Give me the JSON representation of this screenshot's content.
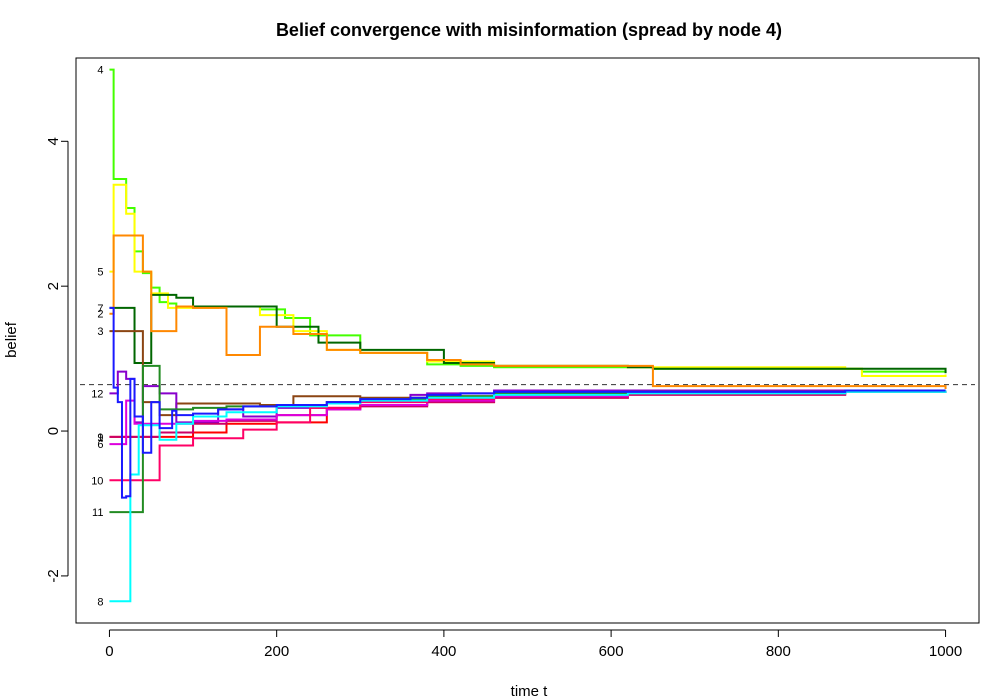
{
  "chart_data": {
    "type": "line",
    "title": "Belief convergence with misinformation (spread by node 4)",
    "xlabel": "time t",
    "ylabel": "belief",
    "xlim": [
      -40,
      1040
    ],
    "ylim": [
      -2.65,
      5.15
    ],
    "x_ticks": [
      0,
      200,
      400,
      600,
      800,
      1000
    ],
    "y_ticks": [
      -2,
      0,
      2,
      4
    ],
    "reference_line": {
      "y": 0.64,
      "style": "dashed"
    },
    "series": [
      {
        "name": "4",
        "color": "#44ff00",
        "x": [
          0,
          5,
          20,
          30,
          40,
          50,
          60,
          70,
          80,
          100,
          130,
          180,
          210,
          240,
          300,
          380,
          420,
          460,
          620,
          650,
          880,
          900,
          1000
        ],
        "y": [
          4.99,
          3.48,
          3.08,
          2.48,
          2.18,
          1.98,
          1.78,
          1.76,
          1.72,
          1.72,
          1.72,
          1.68,
          1.56,
          1.32,
          1.08,
          0.92,
          0.9,
          0.88,
          0.88,
          0.86,
          0.86,
          0.82,
          0.8
        ]
      },
      {
        "name": "5",
        "color": "#ffff00",
        "x": [
          0,
          5,
          20,
          30,
          50,
          70,
          90,
          130,
          180,
          220,
          260,
          300,
          380,
          460,
          620,
          880,
          900,
          1000
        ],
        "y": [
          2.2,
          3.4,
          3.0,
          2.2,
          1.9,
          1.7,
          1.7,
          1.72,
          1.6,
          1.38,
          1.12,
          1.08,
          0.96,
          0.9,
          0.88,
          0.86,
          0.76,
          0.78
        ]
      },
      {
        "name": "7",
        "color": "#006600",
        "x": [
          0,
          5,
          30,
          50,
          80,
          100,
          180,
          200,
          250,
          300,
          400,
          460,
          620,
          650,
          880,
          1000
        ],
        "y": [
          1.7,
          1.7,
          0.94,
          1.88,
          1.84,
          1.72,
          1.72,
          1.44,
          1.22,
          1.12,
          0.94,
          0.9,
          0.88,
          0.86,
          0.86,
          0.8
        ]
      },
      {
        "name": "2",
        "color": "#ff8800",
        "x": [
          0,
          5,
          40,
          50,
          80,
          100,
          140,
          180,
          220,
          260,
          300,
          380,
          420,
          460,
          620,
          650,
          880,
          1000
        ],
        "y": [
          1.62,
          2.7,
          2.2,
          1.38,
          1.72,
          1.7,
          1.05,
          1.44,
          1.34,
          1.12,
          1.08,
          0.98,
          0.92,
          0.9,
          0.9,
          0.62,
          0.62,
          0.58
        ]
      },
      {
        "name": "3",
        "color": "#8b4513",
        "x": [
          0,
          20,
          40,
          60,
          80,
          100,
          140,
          180,
          220,
          300,
          380,
          460,
          620,
          880,
          1000
        ],
        "y": [
          1.38,
          1.38,
          0.4,
          0.22,
          0.38,
          0.38,
          0.38,
          0.36,
          0.48,
          0.46,
          0.48,
          0.52,
          0.52,
          0.54,
          0.54
        ]
      },
      {
        "name": "12",
        "color": "#8800cc",
        "x": [
          0,
          10,
          20,
          30,
          40,
          60,
          80,
          130,
          160,
          200,
          260,
          300,
          360,
          380,
          420,
          460,
          620,
          880,
          1000
        ],
        "y": [
          0.52,
          0.82,
          0.72,
          0.12,
          0.62,
          0.52,
          0.12,
          0.3,
          0.2,
          0.32,
          0.4,
          0.42,
          0.5,
          0.52,
          0.52,
          0.56,
          0.56,
          0.56,
          0.56
        ]
      },
      {
        "name": "9",
        "color": "#ff0000",
        "x": [
          0,
          20,
          40,
          60,
          100,
          140,
          200,
          260,
          300,
          380,
          460,
          620,
          880,
          1000
        ],
        "y": [
          -0.08,
          -0.08,
          -0.08,
          -0.08,
          -0.02,
          0.1,
          0.12,
          0.32,
          0.36,
          0.4,
          0.46,
          0.52,
          0.54,
          0.56
        ]
      },
      {
        "name": "1",
        "color": "#cc0066",
        "x": [
          0,
          20,
          40,
          60,
          100,
          140,
          200,
          260,
          300,
          380,
          460,
          620,
          880,
          1000
        ],
        "y": [
          -0.08,
          -0.08,
          -0.08,
          -0.02,
          0.1,
          0.14,
          0.22,
          0.3,
          0.34,
          0.4,
          0.46,
          0.5,
          0.54,
          0.56
        ]
      },
      {
        "name": "6",
        "color": "#dd00dd",
        "x": [
          0,
          10,
          20,
          30,
          60,
          80,
          100,
          140,
          200,
          260,
          300,
          380,
          460,
          620,
          880,
          1000
        ],
        "y": [
          -0.18,
          -0.18,
          0.42,
          0.1,
          0.1,
          0.1,
          0.14,
          0.16,
          0.22,
          0.3,
          0.36,
          0.42,
          0.48,
          0.52,
          0.54,
          0.56
        ]
      },
      {
        "name": "10",
        "color": "#ff0066",
        "x": [
          0,
          40,
          60,
          100,
          160,
          200,
          240,
          300,
          380,
          460,
          620,
          880,
          1000
        ],
        "y": [
          -0.68,
          -0.68,
          -0.2,
          -0.1,
          0.02,
          0.12,
          0.32,
          0.4,
          0.44,
          0.5,
          0.52,
          0.54,
          0.54
        ]
      },
      {
        "name": "11",
        "color": "#228b22",
        "x": [
          0,
          30,
          40,
          60,
          80,
          100,
          140,
          200,
          260,
          300,
          380,
          460,
          620,
          880,
          1000
        ],
        "y": [
          -1.12,
          -1.12,
          0.9,
          0.3,
          0.3,
          0.32,
          0.34,
          0.36,
          0.4,
          0.44,
          0.48,
          0.52,
          0.54,
          0.56,
          0.56
        ]
      },
      {
        "name": "8",
        "color": "#00ffff",
        "x": [
          0,
          15,
          25,
          35,
          60,
          80,
          100,
          140,
          200,
          260,
          300,
          380,
          460,
          620,
          880,
          1000
        ],
        "y": [
          -2.35,
          -2.35,
          -0.6,
          0.08,
          -0.12,
          0.1,
          0.2,
          0.26,
          0.34,
          0.38,
          0.42,
          0.46,
          0.5,
          0.52,
          0.54,
          0.56
        ]
      },
      {
        "name": "",
        "color": "#1a1aff",
        "x": [
          0,
          5,
          10,
          15,
          20,
          25,
          30,
          40,
          50,
          60,
          75,
          80,
          100,
          130,
          160,
          200,
          260,
          300,
          360,
          380,
          420,
          460,
          620,
          880,
          1000
        ],
        "y": [
          1.7,
          0.6,
          0.4,
          -0.92,
          -0.9,
          0.72,
          0.2,
          -0.3,
          0.4,
          0.04,
          0.28,
          0.22,
          0.24,
          0.3,
          0.34,
          0.36,
          0.4,
          0.44,
          0.46,
          0.5,
          0.52,
          0.54,
          0.54,
          0.56,
          0.56
        ]
      }
    ]
  }
}
